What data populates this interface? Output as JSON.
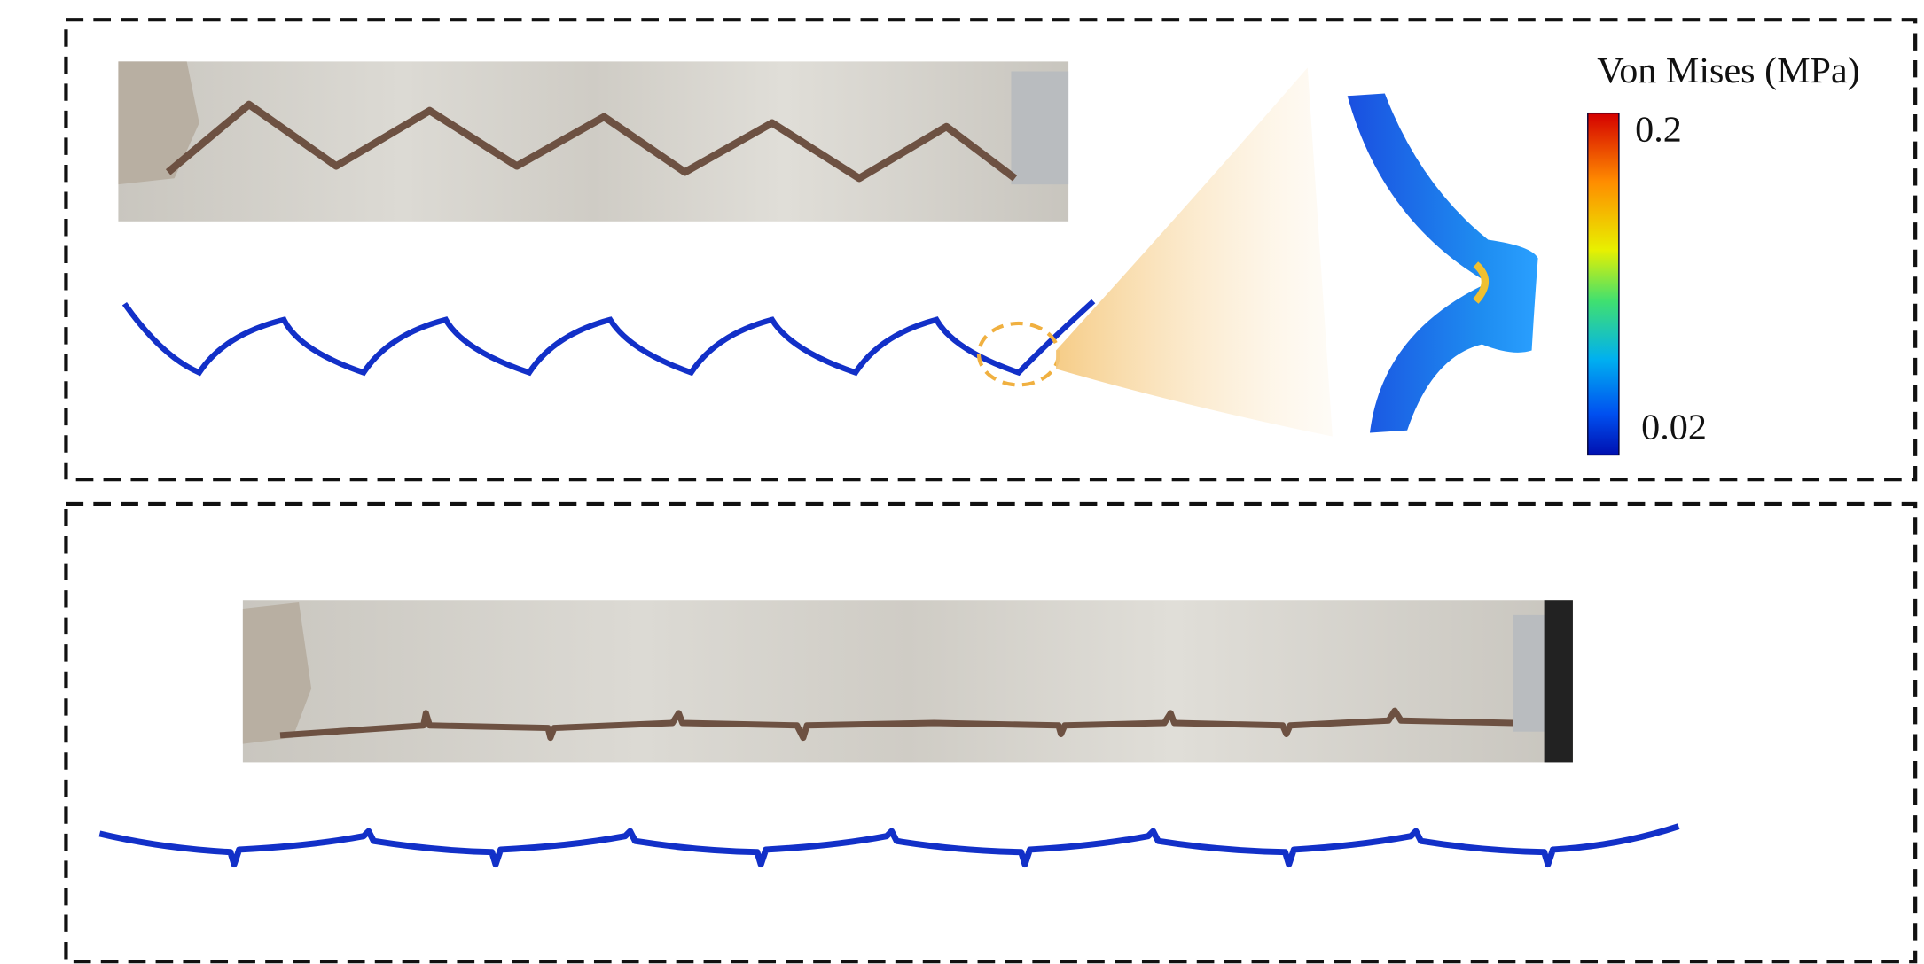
{
  "colorbar": {
    "title": "Von Mises (MPa)",
    "max": 0.2,
    "min": 0.02
  }
}
